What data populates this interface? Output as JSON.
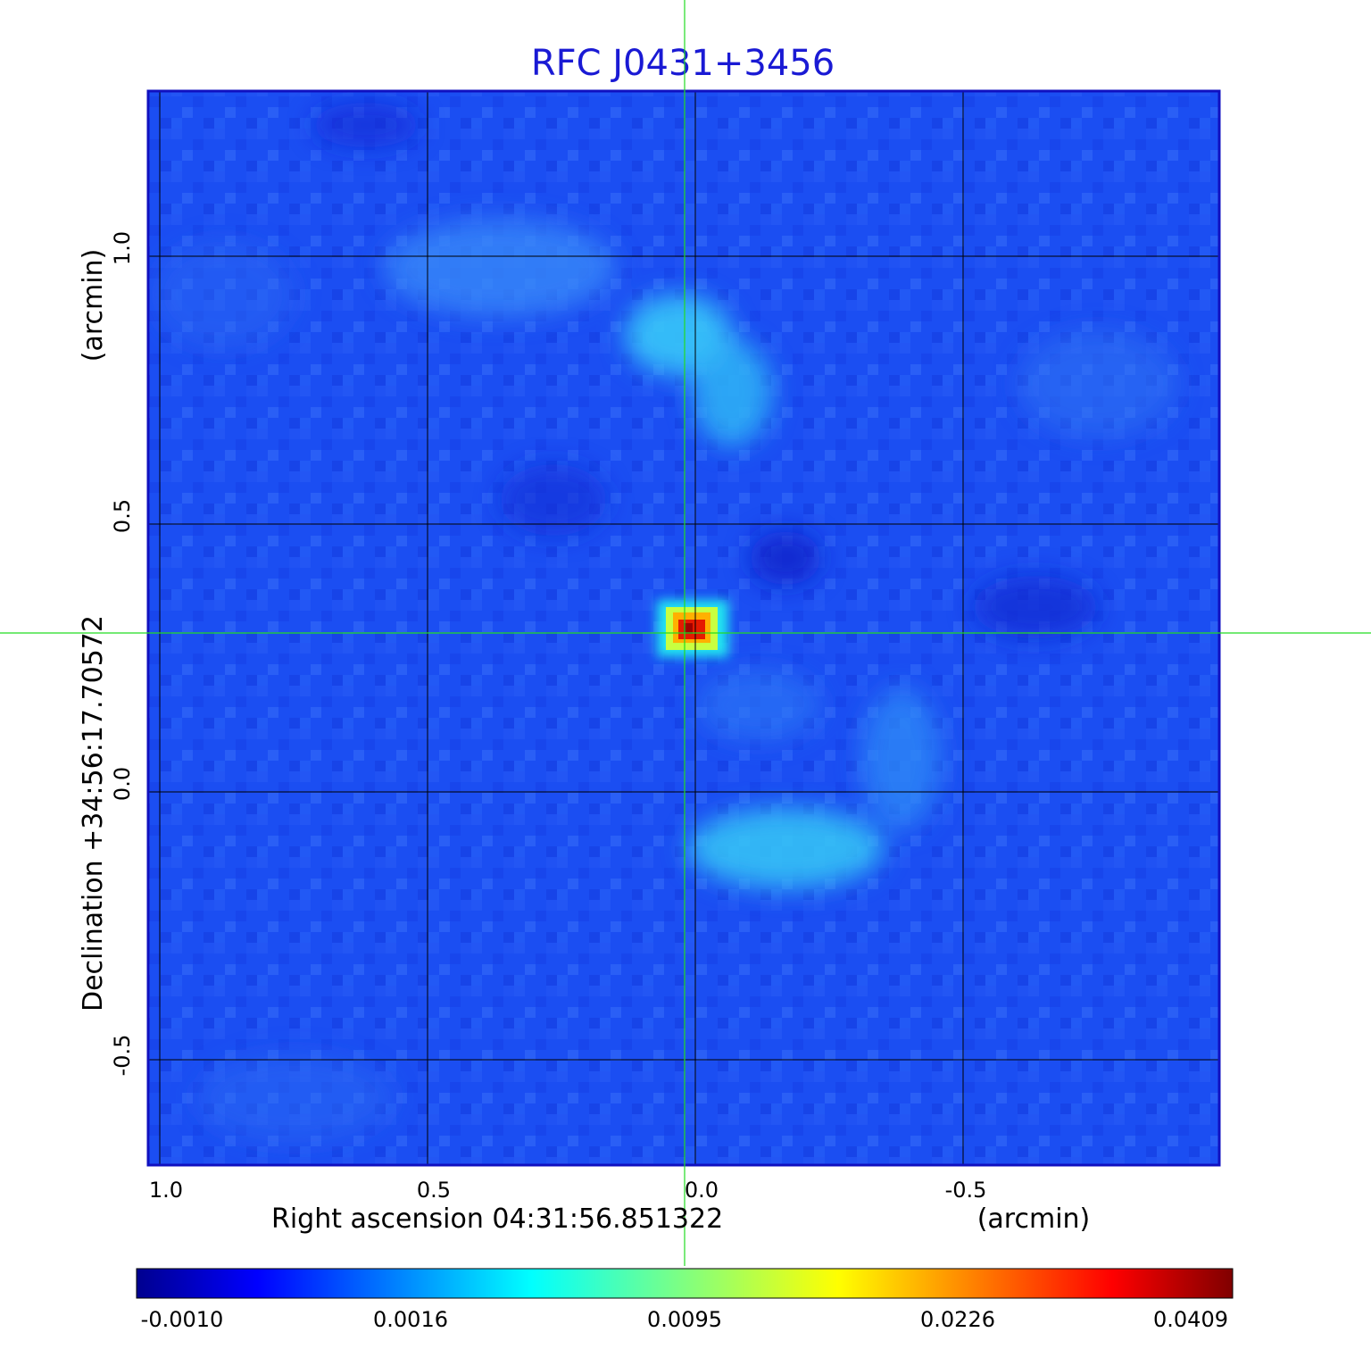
{
  "title": "RFC J0431+3456",
  "x_axis": {
    "label": "Right ascension  04:31:56.851322",
    "unit": "(arcmin)",
    "ticks": [
      "1.0",
      "0.5",
      "0.0",
      "-0.5"
    ]
  },
  "y_axis": {
    "label": "Declination  +34:56:17.70572",
    "unit": "(arcmin)",
    "ticks": [
      "1.0",
      "0.5",
      "0.0",
      "-0.5"
    ]
  },
  "colorbar": {
    "colormap": "jet",
    "ticks": [
      "-0.0010",
      "0.0016",
      "0.0095",
      "0.0226",
      "0.0409"
    ]
  },
  "colors": {
    "title": "#1a1ad4",
    "grid": "#000000",
    "crosshair": "#22dd22",
    "frame": "#1010c0"
  },
  "features": [
    {
      "name": "compact-core",
      "value": 0.0409
    },
    {
      "name": "northern-arc",
      "value": 0.003
    },
    {
      "name": "southern-arc",
      "value": 0.0036
    }
  ]
}
